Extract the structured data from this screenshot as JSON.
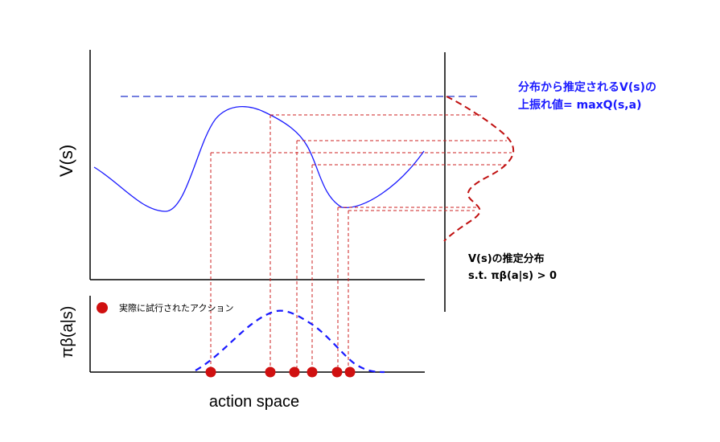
{
  "colors": {
    "value_curve": "#1a1aff",
    "policy_curve": "#1a1aff",
    "upper_bound_line": "#2233cc",
    "guide_lines": "#cc2222",
    "dots": "#d01010",
    "estimated_distribution": "#c01010",
    "blue_note": "#1a1aff",
    "axes": "#000000"
  },
  "labels": {
    "y_axis_value": "V(s)",
    "y_axis_policy": "πβ(a|s)",
    "x_axis": "action space"
  },
  "legend": {
    "dot_label": "実際に試行されたアクション",
    "dot_icon": "red-circle-icon"
  },
  "notes": {
    "upper_line1": "分布から推定されるV(s)の",
    "upper_line2": "上振れ値= maxQ(s,a)",
    "dist_line1": "V(s)の推定分布",
    "dist_line2": "s.t. πβ(a|s) > 0"
  }
}
